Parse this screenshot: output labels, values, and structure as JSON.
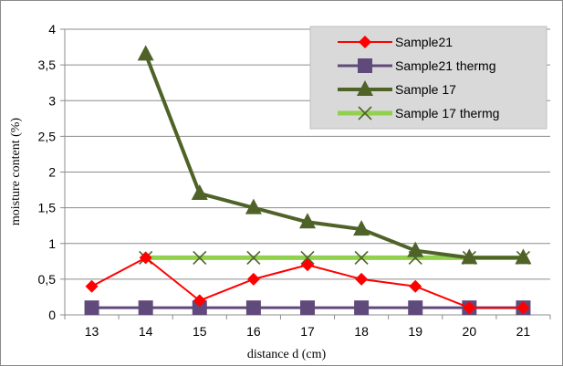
{
  "chart_data": {
    "type": "line",
    "title": "",
    "xlabel": "distance d (cm)",
    "ylabel": "moisture content  (%)",
    "categories": [
      "13",
      "14",
      "15",
      "16",
      "17",
      "18",
      "19",
      "20",
      "21"
    ],
    "ylim": [
      0,
      4
    ],
    "yticks": [
      "0",
      "0,5",
      "1",
      "1,5",
      "2",
      "2,5",
      "3",
      "3,5",
      "4"
    ],
    "grid": true,
    "legend_position": "top-right",
    "series": [
      {
        "name": "Sample21",
        "color": "#ff0000",
        "marker": "diamond",
        "values": [
          0.4,
          0.8,
          0.2,
          0.5,
          0.7,
          0.5,
          0.4,
          0.1,
          0.1
        ]
      },
      {
        "name": "Sample21 thermg",
        "color": "#604a7b",
        "marker": "square",
        "values": [
          0.1,
          0.1,
          0.1,
          0.1,
          0.1,
          0.1,
          0.1,
          0.1,
          0.1
        ]
      },
      {
        "name": "Sample 17",
        "color": "#4f6228",
        "marker": "triangle",
        "values": [
          null,
          3.65,
          1.7,
          1.5,
          1.3,
          1.2,
          0.9,
          0.8,
          0.8
        ]
      },
      {
        "name": "Sample 17 thermg",
        "color": "#92d050",
        "marker": "x",
        "marker_color": "#4f6228",
        "values": [
          null,
          0.8,
          0.8,
          0.8,
          0.8,
          0.8,
          0.8,
          0.8,
          0.8
        ]
      }
    ]
  }
}
